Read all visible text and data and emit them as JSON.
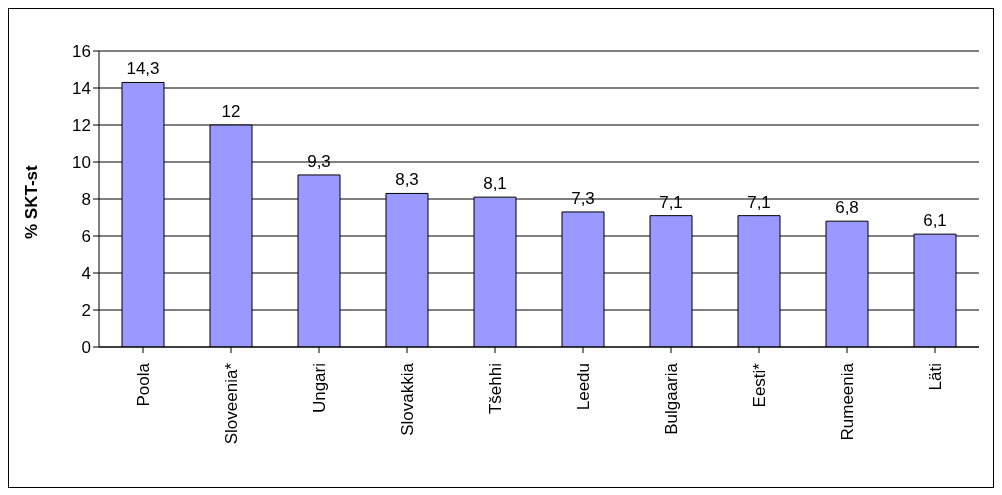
{
  "chart_data": {
    "type": "bar",
    "ylabel": "% SKT-st",
    "categories": [
      "Poola",
      "Sloveenia*",
      "Ungari",
      "Slovakkia",
      "Tšehhi",
      "Leedu",
      "Bulgaaria",
      "Eesti*",
      "Rumeenia",
      "Läti"
    ],
    "values": [
      14.3,
      12,
      9.3,
      8.3,
      8.1,
      7.3,
      7.1,
      7.1,
      6.8,
      6.1
    ],
    "value_labels": [
      "14,3",
      "12",
      "9,3",
      "8,3",
      "8,1",
      "7,3",
      "7,1",
      "7,1",
      "6,8",
      "6,1"
    ],
    "color": "#9999ff",
    "ylim": [
      0,
      16
    ],
    "yticks": [
      0,
      2,
      4,
      6,
      8,
      10,
      12,
      14,
      16
    ],
    "grid": "y",
    "legend": false
  }
}
